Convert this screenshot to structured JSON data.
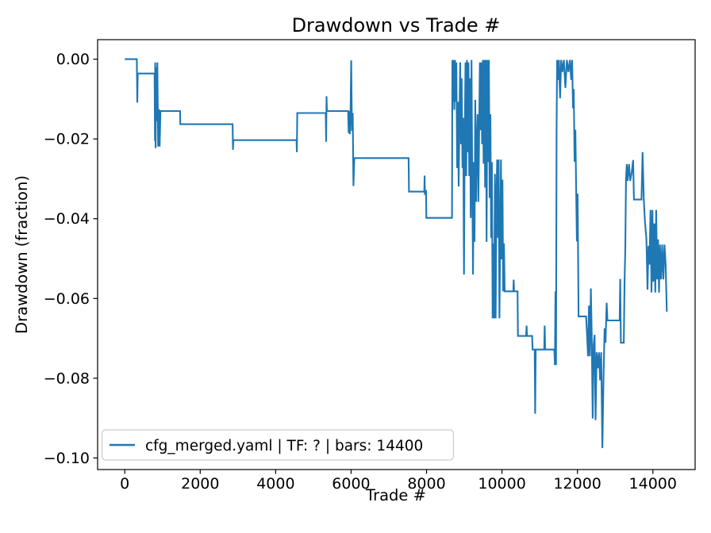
{
  "figure": {
    "title": "Drawdown vs Trade #",
    "xlabel": "Trade #",
    "ylabel": "Drawdown (fraction)",
    "background_color": "#ffffff",
    "spine_color": "#000000"
  },
  "legend": {
    "label": "cfg_merged.yaml | TF: ? | bars: 14400",
    "line_color": "#1f77b4",
    "border_color": "#cccccc",
    "position": "lower left"
  },
  "chart_data": {
    "type": "line",
    "title": "Drawdown vs Trade #",
    "xlabel": "Trade #",
    "ylabel": "Drawdown (fraction)",
    "grid": false,
    "legend_position": "lower left",
    "xlim": [
      -720,
      15120
    ],
    "ylim": [
      -0.1029,
      0.0049
    ],
    "xticks": {
      "values": [
        0,
        2000,
        4000,
        6000,
        8000,
        10000,
        12000,
        14000
      ],
      "labels": [
        "0",
        "2000",
        "4000",
        "6000",
        "8000",
        "10000",
        "12000",
        "14000"
      ]
    },
    "yticks": {
      "values": [
        0.0,
        -0.02,
        -0.04,
        -0.06,
        -0.08,
        -0.1
      ],
      "labels": [
        "0.00",
        "−0.02",
        "−0.04",
        "−0.06",
        "−0.08",
        "−0.10"
      ]
    },
    "series": [
      {
        "name": "cfg_merged.yaml | TF: ? | bars: 14400",
        "color": "#1f77b4",
        "line_width": 2.1,
        "points": [
          [
            1,
            0
          ],
          [
            320,
            0
          ],
          [
            332,
            -0.0109
          ],
          [
            345,
            -0.0036
          ],
          [
            790,
            -0.0036
          ],
          [
            800,
            -0.0205
          ],
          [
            808,
            -0.0008
          ],
          [
            818,
            -0.0223
          ],
          [
            830,
            -0.002
          ],
          [
            848,
            -0.0155
          ],
          [
            865,
            -0.0008
          ],
          [
            885,
            -0.0219
          ],
          [
            905,
            -0.0125
          ],
          [
            925,
            -0.0219
          ],
          [
            945,
            -0.013
          ],
          [
            1465,
            -0.013
          ],
          [
            1472,
            -0.0163
          ],
          [
            2858,
            -0.0163
          ],
          [
            2868,
            -0.0227
          ],
          [
            2880,
            -0.0203
          ],
          [
            4553,
            -0.0203
          ],
          [
            4562,
            -0.0233
          ],
          [
            4572,
            -0.0135
          ],
          [
            5328,
            -0.0135
          ],
          [
            5338,
            -0.0207
          ],
          [
            5348,
            -0.0093
          ],
          [
            5360,
            -0.013
          ],
          [
            5920,
            -0.013
          ],
          [
            5936,
            -0.0185
          ],
          [
            5952,
            -0.013
          ],
          [
            5968,
            -0.0188
          ],
          [
            5986,
            -0.0125
          ],
          [
            6004,
            -0.0003
          ],
          [
            6022,
            -0.018
          ],
          [
            6042,
            -0.0135
          ],
          [
            6062,
            -0.0318
          ],
          [
            6085,
            -0.0248
          ],
          [
            7525,
            -0.0248
          ],
          [
            7534,
            -0.0332
          ],
          [
            7940,
            -0.0332
          ],
          [
            7948,
            -0.0292
          ],
          [
            7956,
            -0.0336
          ],
          [
            7986,
            -0.0332
          ],
          [
            7996,
            -0.0398
          ],
          [
            8675,
            -0.0398
          ],
          [
            8686,
            -0.0002
          ],
          [
            8702,
            -0.0107
          ],
          [
            8718,
            -0.0002
          ],
          [
            8736,
            -0.0127
          ],
          [
            8754,
            -0.0002
          ],
          [
            8772,
            -0.0107
          ],
          [
            8790,
            -0.0008
          ],
          [
            8812,
            -0.0273
          ],
          [
            8832,
            -0.0107
          ],
          [
            8852,
            -0.0319
          ],
          [
            8872,
            -0.0147
          ],
          [
            8892,
            -0.0008
          ],
          [
            8912,
            -0.0213
          ],
          [
            8932,
            -0.0048
          ],
          [
            8952,
            -0.0273
          ],
          [
            8972,
            -0.0147
          ],
          [
            8992,
            -0.054
          ],
          [
            9012,
            -0.0213
          ],
          [
            9032,
            -0.0008
          ],
          [
            9052,
            -0.0293
          ],
          [
            9072,
            -0.0002
          ],
          [
            9092,
            -0.0233
          ],
          [
            9112,
            -0.0008
          ],
          [
            9132,
            -0.0293
          ],
          [
            9152,
            -0.0048
          ],
          [
            9172,
            -0.0398
          ],
          [
            9192,
            -0.0002
          ],
          [
            9212,
            -0.0293
          ],
          [
            9232,
            -0.054
          ],
          [
            9252,
            -0.0258
          ],
          [
            9272,
            -0.0458
          ],
          [
            9292,
            -0.0102
          ],
          [
            9312,
            -0.0358
          ],
          [
            9332,
            -0.0208
          ],
          [
            9352,
            -0.0138
          ],
          [
            9372,
            -0.0358
          ],
          [
            9392,
            -0.0208
          ],
          [
            9412,
            -0.0008
          ],
          [
            9432,
            -0.0178
          ],
          [
            9452,
            -0.0008
          ],
          [
            9472,
            -0.0213
          ],
          [
            9492,
            -0.0002
          ],
          [
            9512,
            -0.0262
          ],
          [
            9532,
            -0.0002
          ],
          [
            9552,
            -0.0322
          ],
          [
            9572,
            -0.0002
          ],
          [
            9592,
            -0.0458
          ],
          [
            9612,
            -0.0002
          ],
          [
            9632,
            -0.0258
          ],
          [
            9652,
            -0.0002
          ],
          [
            9672,
            -0.0348
          ],
          [
            9692,
            -0.0138
          ],
          [
            9712,
            -0.0448
          ],
          [
            9732,
            -0.0258
          ],
          [
            9752,
            -0.065
          ],
          [
            9772,
            -0.0462
          ],
          [
            9792,
            -0.065
          ],
          [
            9812,
            -0.0288
          ],
          [
            9832,
            -0.065
          ],
          [
            9852,
            -0.0348
          ],
          [
            9872,
            -0.0252
          ],
          [
            9892,
            -0.0448
          ],
          [
            9912,
            -0.0252
          ],
          [
            9932,
            -0.065
          ],
          [
            9952,
            -0.0462
          ],
          [
            9972,
            -0.0252
          ],
          [
            9992,
            -0.0502
          ],
          [
            10012,
            -0.0302
          ],
          [
            10032,
            -0.0582
          ],
          [
            10052,
            -0.0462
          ],
          [
            10072,
            -0.0582
          ],
          [
            10300,
            -0.0582
          ],
          [
            10310,
            -0.0553
          ],
          [
            10320,
            -0.0582
          ],
          [
            10412,
            -0.0582
          ],
          [
            10422,
            -0.0694
          ],
          [
            10640,
            -0.0694
          ],
          [
            10652,
            -0.0668
          ],
          [
            10664,
            -0.0694
          ],
          [
            10800,
            -0.0694
          ],
          [
            10812,
            -0.0728
          ],
          [
            10866,
            -0.0728
          ],
          [
            10880,
            -0.0889
          ],
          [
            10894,
            -0.0728
          ],
          [
            11120,
            -0.0728
          ],
          [
            11132,
            -0.0668
          ],
          [
            11144,
            -0.0728
          ],
          [
            11388,
            -0.0728
          ],
          [
            11402,
            -0.0767
          ],
          [
            11418,
            -0.0582
          ],
          [
            11432,
            -0.0767
          ],
          [
            11448,
            -0.0173
          ],
          [
            11462,
            -0.0002
          ],
          [
            11486,
            -0.0052
          ],
          [
            11510,
            -0.0002
          ],
          [
            11540,
            -0.0098
          ],
          [
            11570,
            -0.0002
          ],
          [
            11600,
            -0.0032
          ],
          [
            11640,
            -0.0002
          ],
          [
            11680,
            -0.0072
          ],
          [
            11720,
            -0.0002
          ],
          [
            11760,
            -0.0032
          ],
          [
            11800,
            -0.0002
          ],
          [
            11835,
            -0.0052
          ],
          [
            11860,
            -0.0002
          ],
          [
            11882,
            -0.0123
          ],
          [
            11902,
            -0.0075
          ],
          [
            11925,
            -0.0257
          ],
          [
            11945,
            -0.0177
          ],
          [
            11965,
            -0.0317
          ],
          [
            11985,
            -0.0457
          ],
          [
            12005,
            -0.0337
          ],
          [
            12030,
            -0.0645
          ],
          [
            12230,
            -0.0645
          ],
          [
            12255,
            -0.0691
          ],
          [
            12280,
            -0.0745
          ],
          [
            12305,
            -0.0618
          ],
          [
            12330,
            -0.0745
          ],
          [
            12355,
            -0.0575
          ],
          [
            12380,
            -0.0691
          ],
          [
            12405,
            -0.0901
          ],
          [
            12430,
            -0.0718
          ],
          [
            12455,
            -0.0691
          ],
          [
            12480,
            -0.0905
          ],
          [
            12510,
            -0.0735
          ],
          [
            12540,
            -0.0775
          ],
          [
            12570,
            -0.0735
          ],
          [
            12600,
            -0.0805
          ],
          [
            12630,
            -0.0735
          ],
          [
            12660,
            -0.0975
          ],
          [
            12690,
            -0.0805
          ],
          [
            12720,
            -0.0675
          ],
          [
            12745,
            -0.0711
          ],
          [
            12775,
            -0.0611
          ],
          [
            12795,
            -0.0655
          ],
          [
            13120,
            -0.0655
          ],
          [
            13135,
            -0.0551
          ],
          [
            13150,
            -0.0711
          ],
          [
            13228,
            -0.0711
          ],
          [
            13248,
            -0.0565
          ],
          [
            13268,
            -0.0475
          ],
          [
            13288,
            -0.0299
          ],
          [
            13308,
            -0.0263
          ],
          [
            13328,
            -0.0305
          ],
          [
            13368,
            -0.0263
          ],
          [
            13398,
            -0.0305
          ],
          [
            13438,
            -0.0285
          ],
          [
            13478,
            -0.0253
          ],
          [
            13498,
            -0.0352
          ],
          [
            13698,
            -0.0352
          ],
          [
            13728,
            -0.0233
          ],
          [
            13758,
            -0.0352
          ],
          [
            13788,
            -0.0405
          ],
          [
            13828,
            -0.0452
          ],
          [
            13858,
            -0.0578
          ],
          [
            13883,
            -0.0468
          ],
          [
            13908,
            -0.0515
          ],
          [
            13938,
            -0.0378
          ],
          [
            13963,
            -0.0585
          ],
          [
            13988,
            -0.0378
          ],
          [
            14013,
            -0.0558
          ],
          [
            14038,
            -0.0412
          ],
          [
            14063,
            -0.0585
          ],
          [
            14088,
            -0.0378
          ],
          [
            14113,
            -0.0552
          ],
          [
            14138,
            -0.0452
          ],
          [
            14163,
            -0.0585
          ],
          [
            14188,
            -0.0465
          ],
          [
            14218,
            -0.0552
          ],
          [
            14248,
            -0.0465
          ],
          [
            14278,
            -0.0552
          ],
          [
            14308,
            -0.0465
          ],
          [
            14338,
            -0.0512
          ],
          [
            14368,
            -0.0633
          ]
        ]
      }
    ]
  }
}
